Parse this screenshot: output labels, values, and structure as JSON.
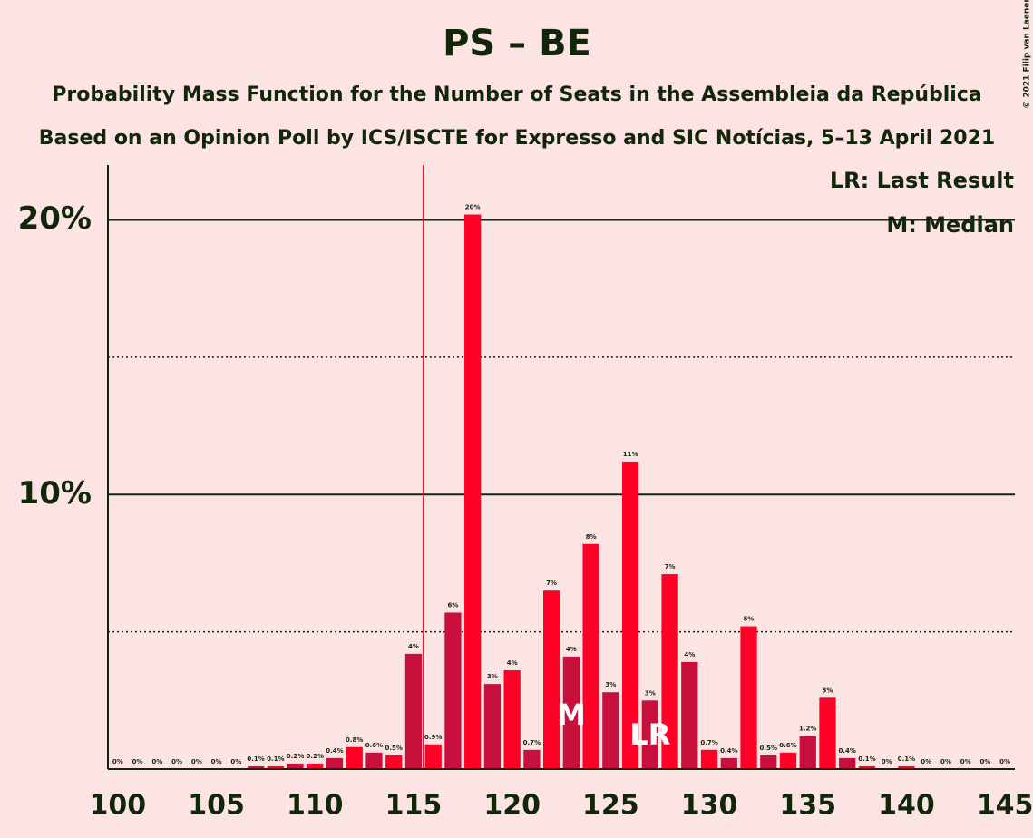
{
  "chart_data": {
    "type": "bar",
    "title": "PS – BE",
    "subtitle": [
      "Probability Mass Function for the Number of Seats in the Assembleia da República",
      "Based on an Opinion Poll by ICS/ISCTE for Expresso and SIC Notícias, 5–13 April 2021"
    ],
    "x": [
      100,
      101,
      102,
      103,
      104,
      105,
      106,
      107,
      108,
      109,
      110,
      111,
      112,
      113,
      114,
      115,
      116,
      117,
      118,
      119,
      120,
      121,
      122,
      123,
      124,
      125,
      126,
      127,
      128,
      129,
      130,
      131,
      132,
      133,
      134,
      135,
      136,
      137,
      138,
      139,
      140,
      141,
      142,
      143,
      144,
      145
    ],
    "values": [
      0,
      0,
      0,
      0,
      0,
      0,
      0,
      0.1,
      0.1,
      0.2,
      0.2,
      0.4,
      0.8,
      0.6,
      0.5,
      4.2,
      0.9,
      5.7,
      20.2,
      3.1,
      3.6,
      0.7,
      6.5,
      4.1,
      8.2,
      2.8,
      11.2,
      2.5,
      7.1,
      3.9,
      0.7,
      0.4,
      5.2,
      0.5,
      0.6,
      1.2,
      2.6,
      0.4,
      0.1,
      0,
      0.1,
      0,
      0,
      0,
      0,
      0
    ],
    "value_labels": [
      "0%",
      "0%",
      "0%",
      "0%",
      "0%",
      "0%",
      "0%",
      "0.1%",
      "0.1%",
      "0.2%",
      "0.2%",
      "0.4%",
      "0.8%",
      "0.6%",
      "0.5%",
      "4%",
      "0.9%",
      "6%",
      "20%",
      "3%",
      "4%",
      "0.7%",
      "7%",
      "4%",
      "8%",
      "3%",
      "11%",
      "3%",
      "7%",
      "4%",
      "0.7%",
      "0.4%",
      "5%",
      "0.5%",
      "0.6%",
      "1.2%",
      "3%",
      "0.4%",
      "0.1%",
      "0%",
      "0.1%",
      "0%",
      "0%",
      "0%",
      "0%",
      "0%"
    ],
    "colors": [
      "#ff0026",
      "#c8103c"
    ],
    "xlim": [
      99.5,
      145.5
    ],
    "xticks": [
      100,
      105,
      110,
      115,
      120,
      125,
      130,
      135,
      140,
      145
    ],
    "ylim": [
      0,
      22
    ],
    "yticks": [
      {
        "value": 10,
        "label": "10%"
      },
      {
        "value": 20,
        "label": "20%"
      }
    ],
    "minor_yticks": [
      5,
      15
    ],
    "threshold": 115.5,
    "median": {
      "x": 123,
      "label": "M"
    },
    "last_result": {
      "x": 127,
      "label": "LR"
    },
    "legend": [
      "LR: Last Result",
      "M: Median"
    ],
    "credit": "© 2021 Filip van Laenen"
  }
}
